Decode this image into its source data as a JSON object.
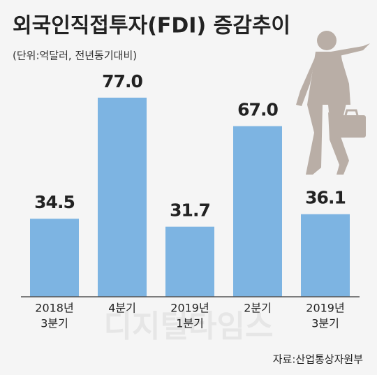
{
  "chart_data": {
    "type": "bar",
    "title": "외국인직접투자(FDI) 증감추이",
    "subtitle": "(단위:억달러, 전년동기대비)",
    "categories": [
      [
        "2018년",
        "3분기"
      ],
      [
        "4분기"
      ],
      [
        "2019년",
        "1분기"
      ],
      [
        "2분기"
      ],
      [
        "2019년",
        "3분기"
      ]
    ],
    "values": [
      34.5,
      77.0,
      31.7,
      67.0,
      36.1
    ],
    "value_labels": [
      "34.5",
      "77.0",
      "31.7",
      "67.0",
      "36.1"
    ],
    "color": "#7db4e2",
    "source": "자료:산업통상자원부",
    "watermark": "디지털타임스"
  }
}
